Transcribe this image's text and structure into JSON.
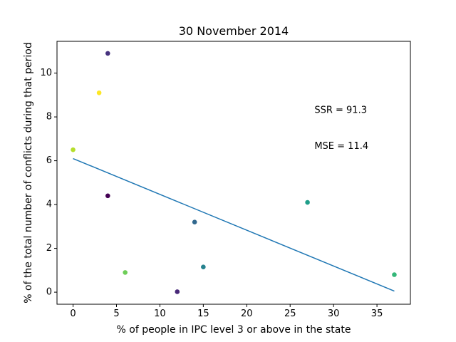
{
  "chart_data": {
    "type": "scatter",
    "title": "30 November 2014",
    "xlabel": "% of people in IPC level 3 or above in the state",
    "ylabel": "% of the total number of conflicts during that period",
    "xlim": [
      -1.85,
      38.85
    ],
    "ylim": [
      -0.55,
      11.45
    ],
    "xticks": [
      0,
      5,
      10,
      15,
      20,
      25,
      30,
      35
    ],
    "xtick_labels": [
      "0",
      "5",
      "10",
      "15",
      "20",
      "25",
      "30",
      "35"
    ],
    "yticks": [
      0,
      2,
      4,
      6,
      8,
      10
    ],
    "ytick_labels": [
      "0",
      "2",
      "4",
      "6",
      "8",
      "10"
    ],
    "grid": false,
    "points": [
      {
        "x": 4,
        "y": 10.9,
        "color": "#46327e"
      },
      {
        "x": 3,
        "y": 9.1,
        "color": "#fde725"
      },
      {
        "x": 0,
        "y": 6.5,
        "color": "#b5de2b"
      },
      {
        "x": 4,
        "y": 4.4,
        "color": "#440154"
      },
      {
        "x": 27,
        "y": 4.1,
        "color": "#1f9e89"
      },
      {
        "x": 14,
        "y": 3.2,
        "color": "#31688e"
      },
      {
        "x": 15,
        "y": 1.15,
        "color": "#26828e"
      },
      {
        "x": 6,
        "y": 0.9,
        "color": "#6ece58"
      },
      {
        "x": 12,
        "y": 0.02,
        "color": "#482878"
      },
      {
        "x": 37,
        "y": 0.8,
        "color": "#35b779"
      }
    ],
    "fit_line": {
      "x": [
        0,
        37
      ],
      "y": [
        6.1,
        0.05
      ],
      "color": "#1f77b4"
    },
    "annotations": [
      {
        "text": "SSR = 91.3",
        "x": 27.8,
        "y": 8.3
      },
      {
        "text": "MSE = 11.4",
        "x": 27.8,
        "y": 6.65
      }
    ]
  }
}
